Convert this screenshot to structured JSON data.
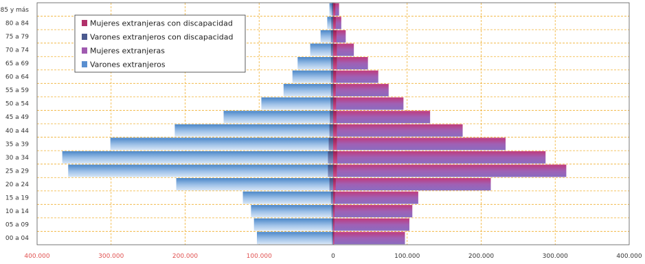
{
  "chart_data": {
    "type": "bar",
    "orientation": "horizontal-pyramid",
    "categories": [
      "00 a 04",
      "05 a 09",
      "10 a 14",
      "15 a 19",
      "20 a 24",
      "25 a 29",
      "30 a 34",
      "35 a 39",
      "40 a 44",
      "45 a 49",
      "50 a 54",
      "55 a 59",
      "60 a 64",
      "65 a 69",
      "70 a 74",
      "75 a 79",
      "80 a 84",
      "85 y más"
    ],
    "xlim": [
      -400000,
      400000
    ],
    "x_ticks": [
      {
        "value": -400000,
        "label": "400.000"
      },
      {
        "value": -300000,
        "label": "300.000"
      },
      {
        "value": -200000,
        "label": "200.000"
      },
      {
        "value": -100000,
        "label": "100.000"
      },
      {
        "value": 0,
        "label": "0"
      },
      {
        "value": 100000,
        "label": "100.000"
      },
      {
        "value": 200000,
        "label": "200.000"
      },
      {
        "value": 300000,
        "label": "300.000"
      },
      {
        "value": 400000,
        "label": "400.000"
      }
    ],
    "grid": true,
    "legend_position": "top-left",
    "series": [
      {
        "name": "Mujeres extranjeras con discapacidad",
        "side": "right",
        "color": "#b0306a",
        "values": [
          1500,
          1700,
          2000,
          2500,
          3500,
          5000,
          5500,
          5000,
          5000,
          4500,
          4000,
          3500,
          4000,
          5000,
          5000,
          4500,
          3500,
          3000
        ]
      },
      {
        "name": "Varones extranjeros con discapacidad",
        "side": "left",
        "color": "#4b5a8f",
        "values": [
          1500,
          1800,
          2200,
          3000,
          5000,
          7000,
          7000,
          6000,
          5000,
          4500,
          3500,
          3000,
          3000,
          3000,
          3000,
          3000,
          2500,
          2000
        ]
      },
      {
        "name": "Mujeres extranjeras",
        "side": "right",
        "color": "#a05ab0",
        "values": [
          97000,
          103000,
          107000,
          115000,
          213000,
          315000,
          287000,
          233000,
          175000,
          131000,
          95000,
          75000,
          61000,
          47000,
          28000,
          17000,
          11000,
          8000
        ]
      },
      {
        "name": "Varones extranjeros",
        "side": "left",
        "color": "#5a8fd0",
        "values": [
          103000,
          107000,
          111000,
          122000,
          212000,
          358000,
          366000,
          301000,
          214000,
          148000,
          97000,
          67000,
          55000,
          48000,
          31000,
          17000,
          8000,
          5000
        ]
      }
    ]
  }
}
